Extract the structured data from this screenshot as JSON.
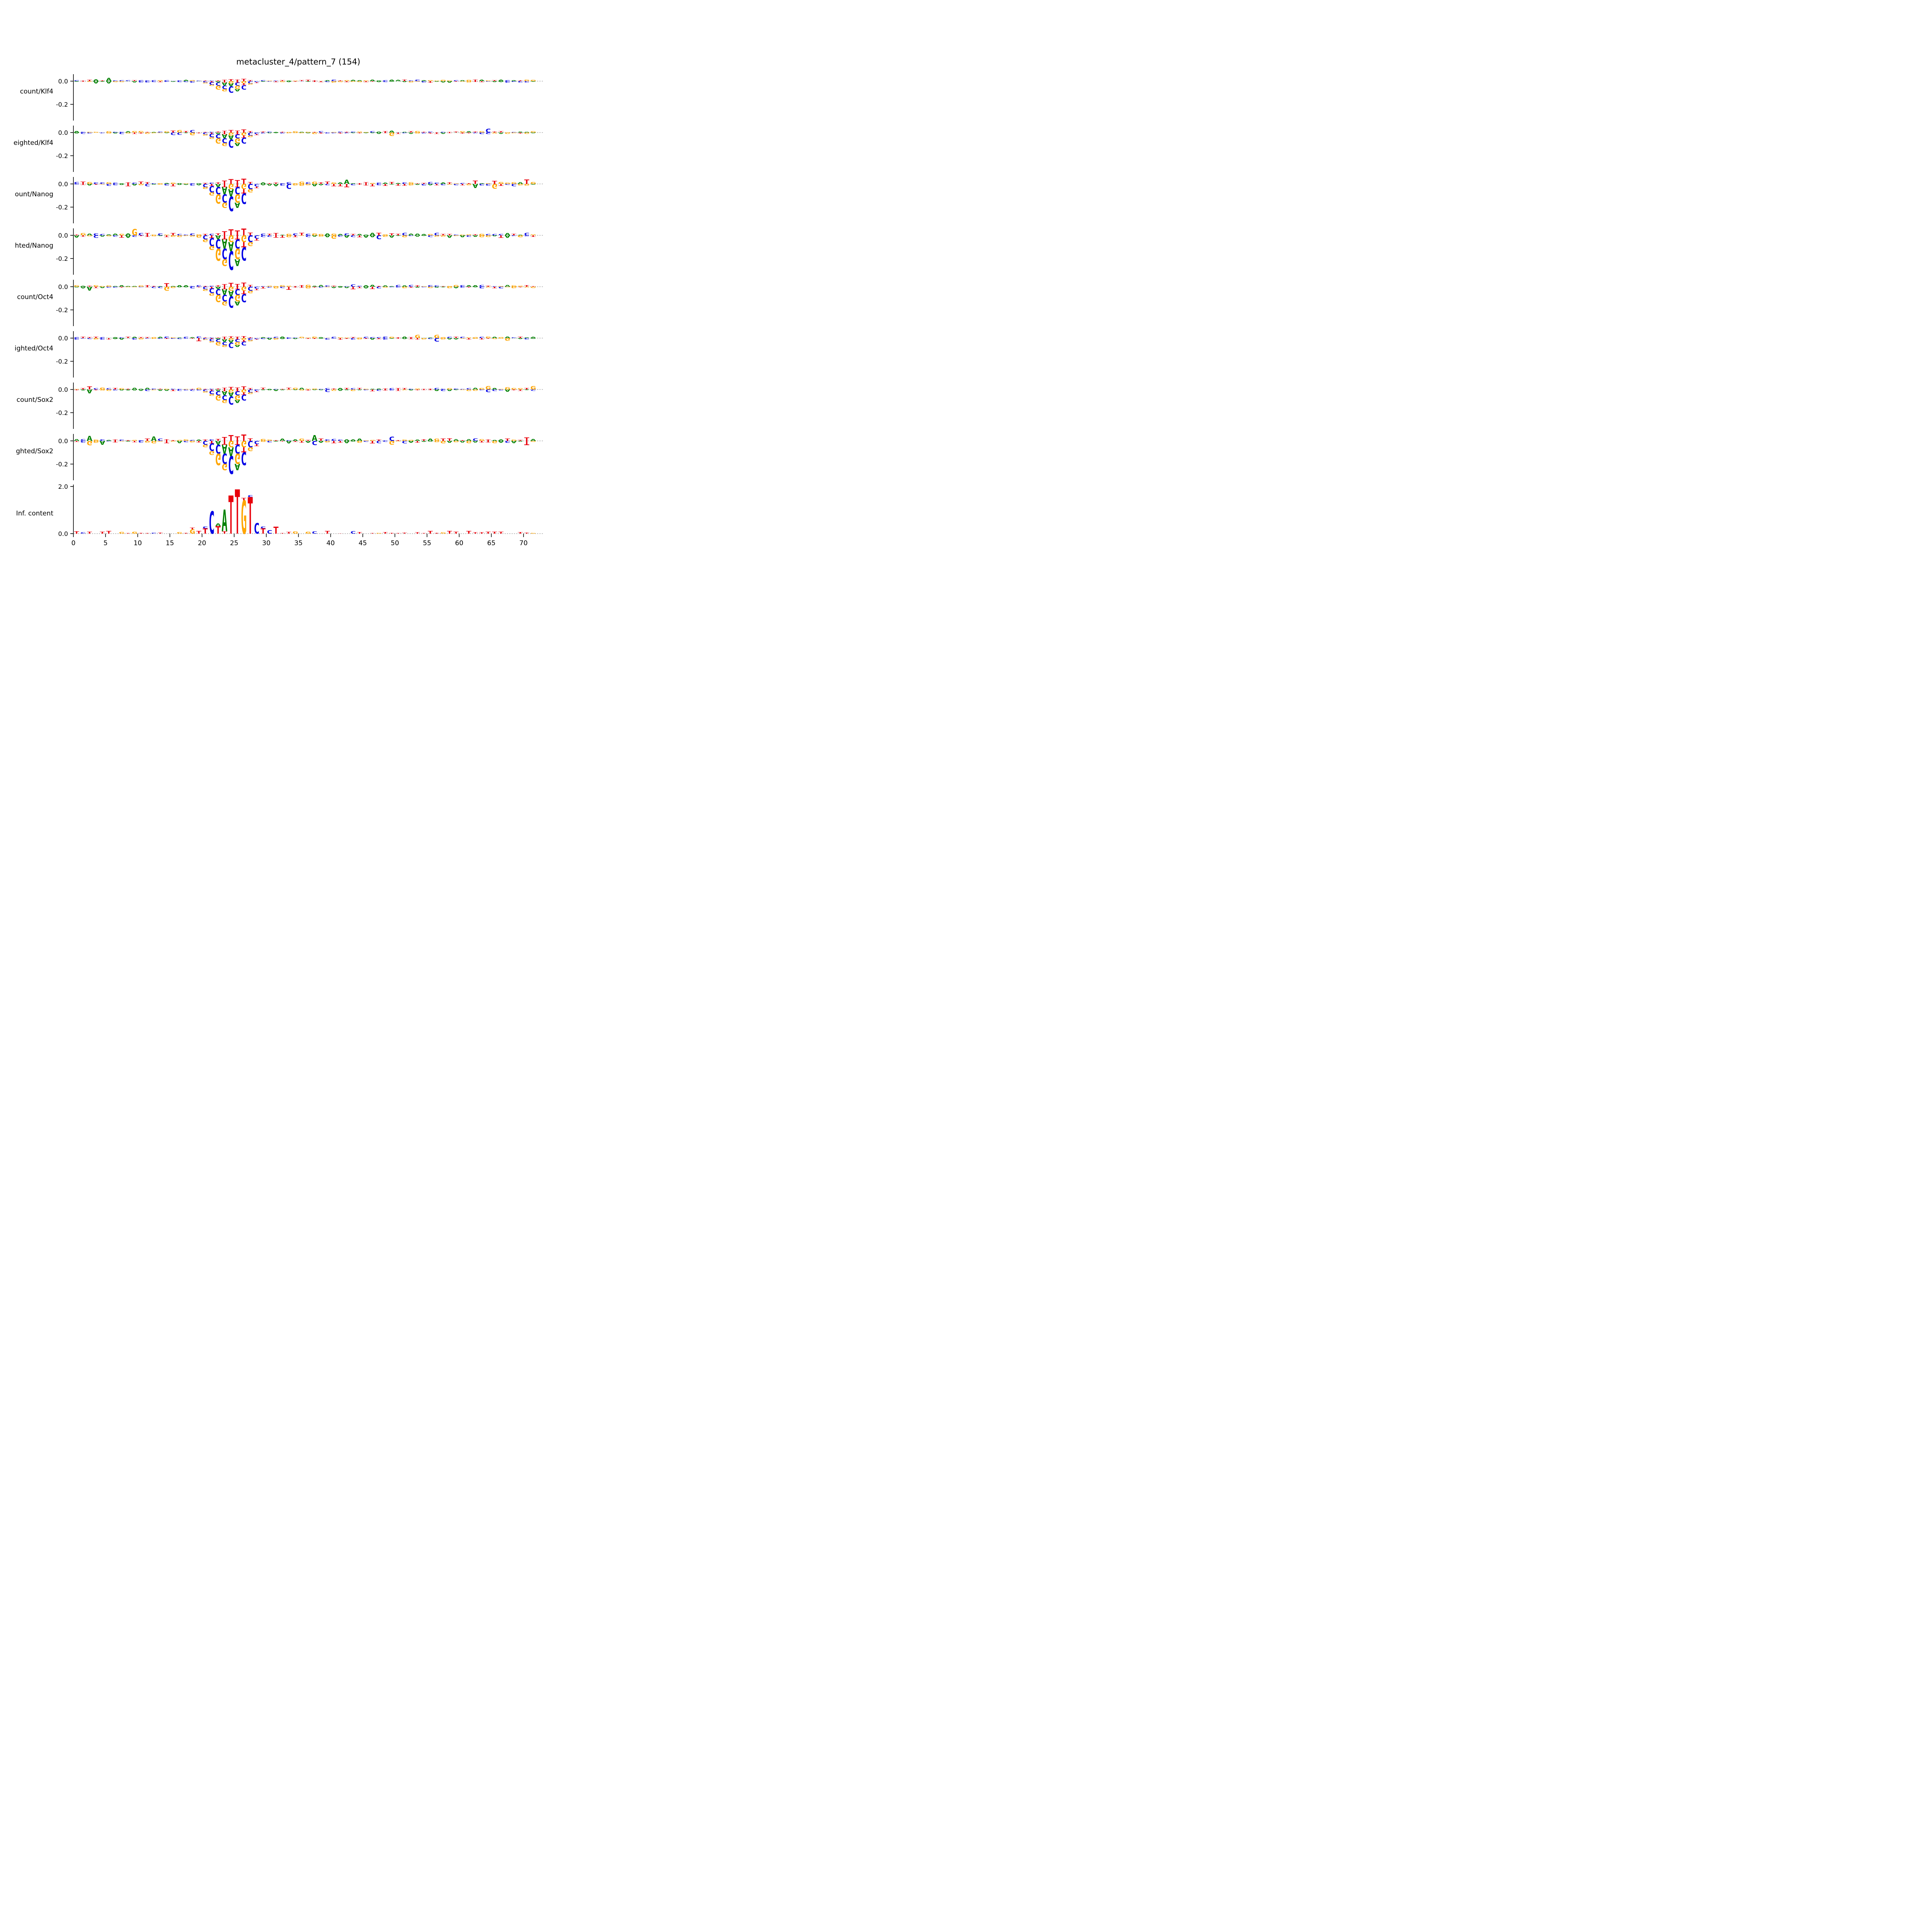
{
  "chart_data": {
    "type": "sequence-logo-grid",
    "title": "metacluster_4/pattern_7 (154)",
    "x_ticks": [
      0,
      5,
      10,
      15,
      20,
      25,
      30,
      35,
      40,
      45,
      50,
      55,
      60,
      65,
      70
    ],
    "x_range": [
      0,
      71.5
    ],
    "base_colors": {
      "A": "#008000",
      "C": "#0000E5",
      "G": "#FFA500",
      "T": "#E8000B"
    },
    "zero_line_color": "#808080",
    "panels": [
      {
        "label": "count/Klf4",
        "kind": "importance",
        "y_ticks": [
          {
            "v": 0,
            "t": "0.0"
          },
          {
            "v": -0.2,
            "t": "-0.2"
          }
        ],
        "scale": 0.38,
        "noise": 0.013
      },
      {
        "label": "eighted/Klf4",
        "kind": "importance",
        "y_ticks": [
          {
            "v": 0,
            "t": "0.0"
          },
          {
            "v": -0.2,
            "t": "-0.2"
          }
        ],
        "scale": 0.5,
        "noise": 0.013
      },
      {
        "label": "ount/Nanog",
        "kind": "importance",
        "y_ticks": [
          {
            "v": 0,
            "t": "0.0"
          },
          {
            "v": -0.2,
            "t": "-0.2"
          }
        ],
        "scale": 0.9,
        "noise": 0.02
      },
      {
        "label": "hted/Nanog",
        "kind": "importance",
        "y_ticks": [
          {
            "v": 0,
            "t": "0.0"
          },
          {
            "v": -0.2,
            "t": "-0.2"
          }
        ],
        "scale": 1.15,
        "noise": 0.022
      },
      {
        "label": "count/Oct4",
        "kind": "importance",
        "y_ticks": [
          {
            "v": 0,
            "t": "0.0"
          },
          {
            "v": -0.2,
            "t": "-0.2"
          }
        ],
        "scale": 0.7,
        "noise": 0.015
      },
      {
        "label": "ighted/Oct4",
        "kind": "importance",
        "y_ticks": [
          {
            "v": 0,
            "t": "0.0"
          },
          {
            "v": -0.2,
            "t": "-0.2"
          }
        ],
        "scale": 0.33,
        "noise": 0.013
      },
      {
        "label": "count/Sox2",
        "kind": "importance",
        "y_ticks": [
          {
            "v": 0,
            "t": "0.0"
          },
          {
            "v": -0.2,
            "t": "-0.2"
          }
        ],
        "scale": 0.5,
        "noise": 0.015
      },
      {
        "label": "ghted/Sox2",
        "kind": "importance",
        "y_ticks": [
          {
            "v": 0,
            "t": "0.0"
          },
          {
            "v": -0.2,
            "t": "-0.2"
          }
        ],
        "scale": 1.1,
        "noise": 0.022
      },
      {
        "label": "Inf. content",
        "kind": "info",
        "y_ticks": [
          {
            "v": 2.0,
            "t": "2.0"
          },
          {
            "v": 0,
            "t": "0.0"
          }
        ],
        "scale": 1.0,
        "noise": 0.12
      }
    ],
    "motif_importance": [
      {
        "pos": 20,
        "down": [
          [
            "C",
            0.03
          ],
          [
            "G",
            0.02
          ]
        ],
        "up": [
          [
            "T",
            0.01
          ]
        ]
      },
      {
        "pos": 21,
        "down": [
          [
            "T",
            0.02
          ],
          [
            "C",
            0.06
          ],
          [
            "G",
            0.03
          ]
        ],
        "up": [
          [
            "C",
            0.012
          ]
        ]
      },
      {
        "pos": 22,
        "down": [
          [
            "A",
            0.03
          ],
          [
            "C",
            0.07
          ],
          [
            "G",
            0.09
          ]
        ],
        "up": [
          [
            "T",
            0.015
          ]
        ]
      },
      {
        "pos": 23,
        "down": [
          [
            "T",
            0.03
          ],
          [
            "A",
            0.07
          ],
          [
            "C",
            0.08
          ],
          [
            "G",
            0.05
          ]
        ],
        "up": [
          [
            "T",
            0.03
          ]
        ]
      },
      {
        "pos": 24,
        "down": [
          [
            "G",
            0.05
          ],
          [
            "A",
            0.07
          ],
          [
            "C",
            0.14
          ]
        ],
        "up": [
          [
            "T",
            0.045
          ]
        ]
      },
      {
        "pos": 25,
        "down": [
          [
            "T",
            0.03
          ],
          [
            "C",
            0.07
          ],
          [
            "G",
            0.08
          ],
          [
            "A",
            0.05
          ]
        ],
        "up": [
          [
            "T",
            0.035
          ]
        ]
      },
      {
        "pos": 26,
        "down": [
          [
            "G",
            0.05
          ],
          [
            "T",
            0.04
          ],
          [
            "C",
            0.1
          ]
        ],
        "up": [
          [
            "T",
            0.05
          ]
        ]
      },
      {
        "pos": 27,
        "down": [
          [
            "C",
            0.05
          ],
          [
            "G",
            0.03
          ]
        ],
        "up": [
          [
            "T",
            0.02
          ]
        ]
      },
      {
        "pos": 28,
        "down": [
          [
            "C",
            0.025
          ],
          [
            "T",
            0.015
          ]
        ],
        "up": []
      }
    ],
    "motif_info": [
      {
        "pos": 18,
        "up": [
          [
            "G",
            0.18
          ],
          [
            "T",
            0.07
          ]
        ]
      },
      {
        "pos": 19,
        "up": [
          [
            "T",
            0.12
          ]
        ]
      },
      {
        "pos": 20,
        "up": [
          [
            "T",
            0.22
          ],
          [
            "C",
            0.08
          ]
        ]
      },
      {
        "pos": 21,
        "up": [
          [
            "C",
            0.95
          ]
        ]
      },
      {
        "pos": 22,
        "up": [
          [
            "T",
            0.32
          ],
          [
            "A",
            0.12
          ]
        ]
      },
      {
        "pos": 23,
        "up": [
          [
            "T",
            0.1
          ],
          [
            "A",
            0.92
          ]
        ]
      },
      {
        "pos": 24,
        "up": [
          [
            "T",
            1.62
          ]
        ]
      },
      {
        "pos": 25,
        "up": [
          [
            "T",
            1.88
          ]
        ]
      },
      {
        "pos": 26,
        "up": [
          [
            "G",
            1.42
          ],
          [
            "T",
            0.1
          ]
        ]
      },
      {
        "pos": 27,
        "up": [
          [
            "T",
            1.55
          ],
          [
            "C",
            0.08
          ]
        ]
      },
      {
        "pos": 28,
        "up": [
          [
            "C",
            0.45
          ]
        ]
      },
      {
        "pos": 29,
        "up": [
          [
            "T",
            0.22
          ],
          [
            "C",
            0.08
          ]
        ]
      },
      {
        "pos": 30,
        "up": [
          [
            "C",
            0.15
          ]
        ]
      },
      {
        "pos": 31,
        "up": [
          [
            "T",
            0.3
          ]
        ]
      }
    ]
  }
}
